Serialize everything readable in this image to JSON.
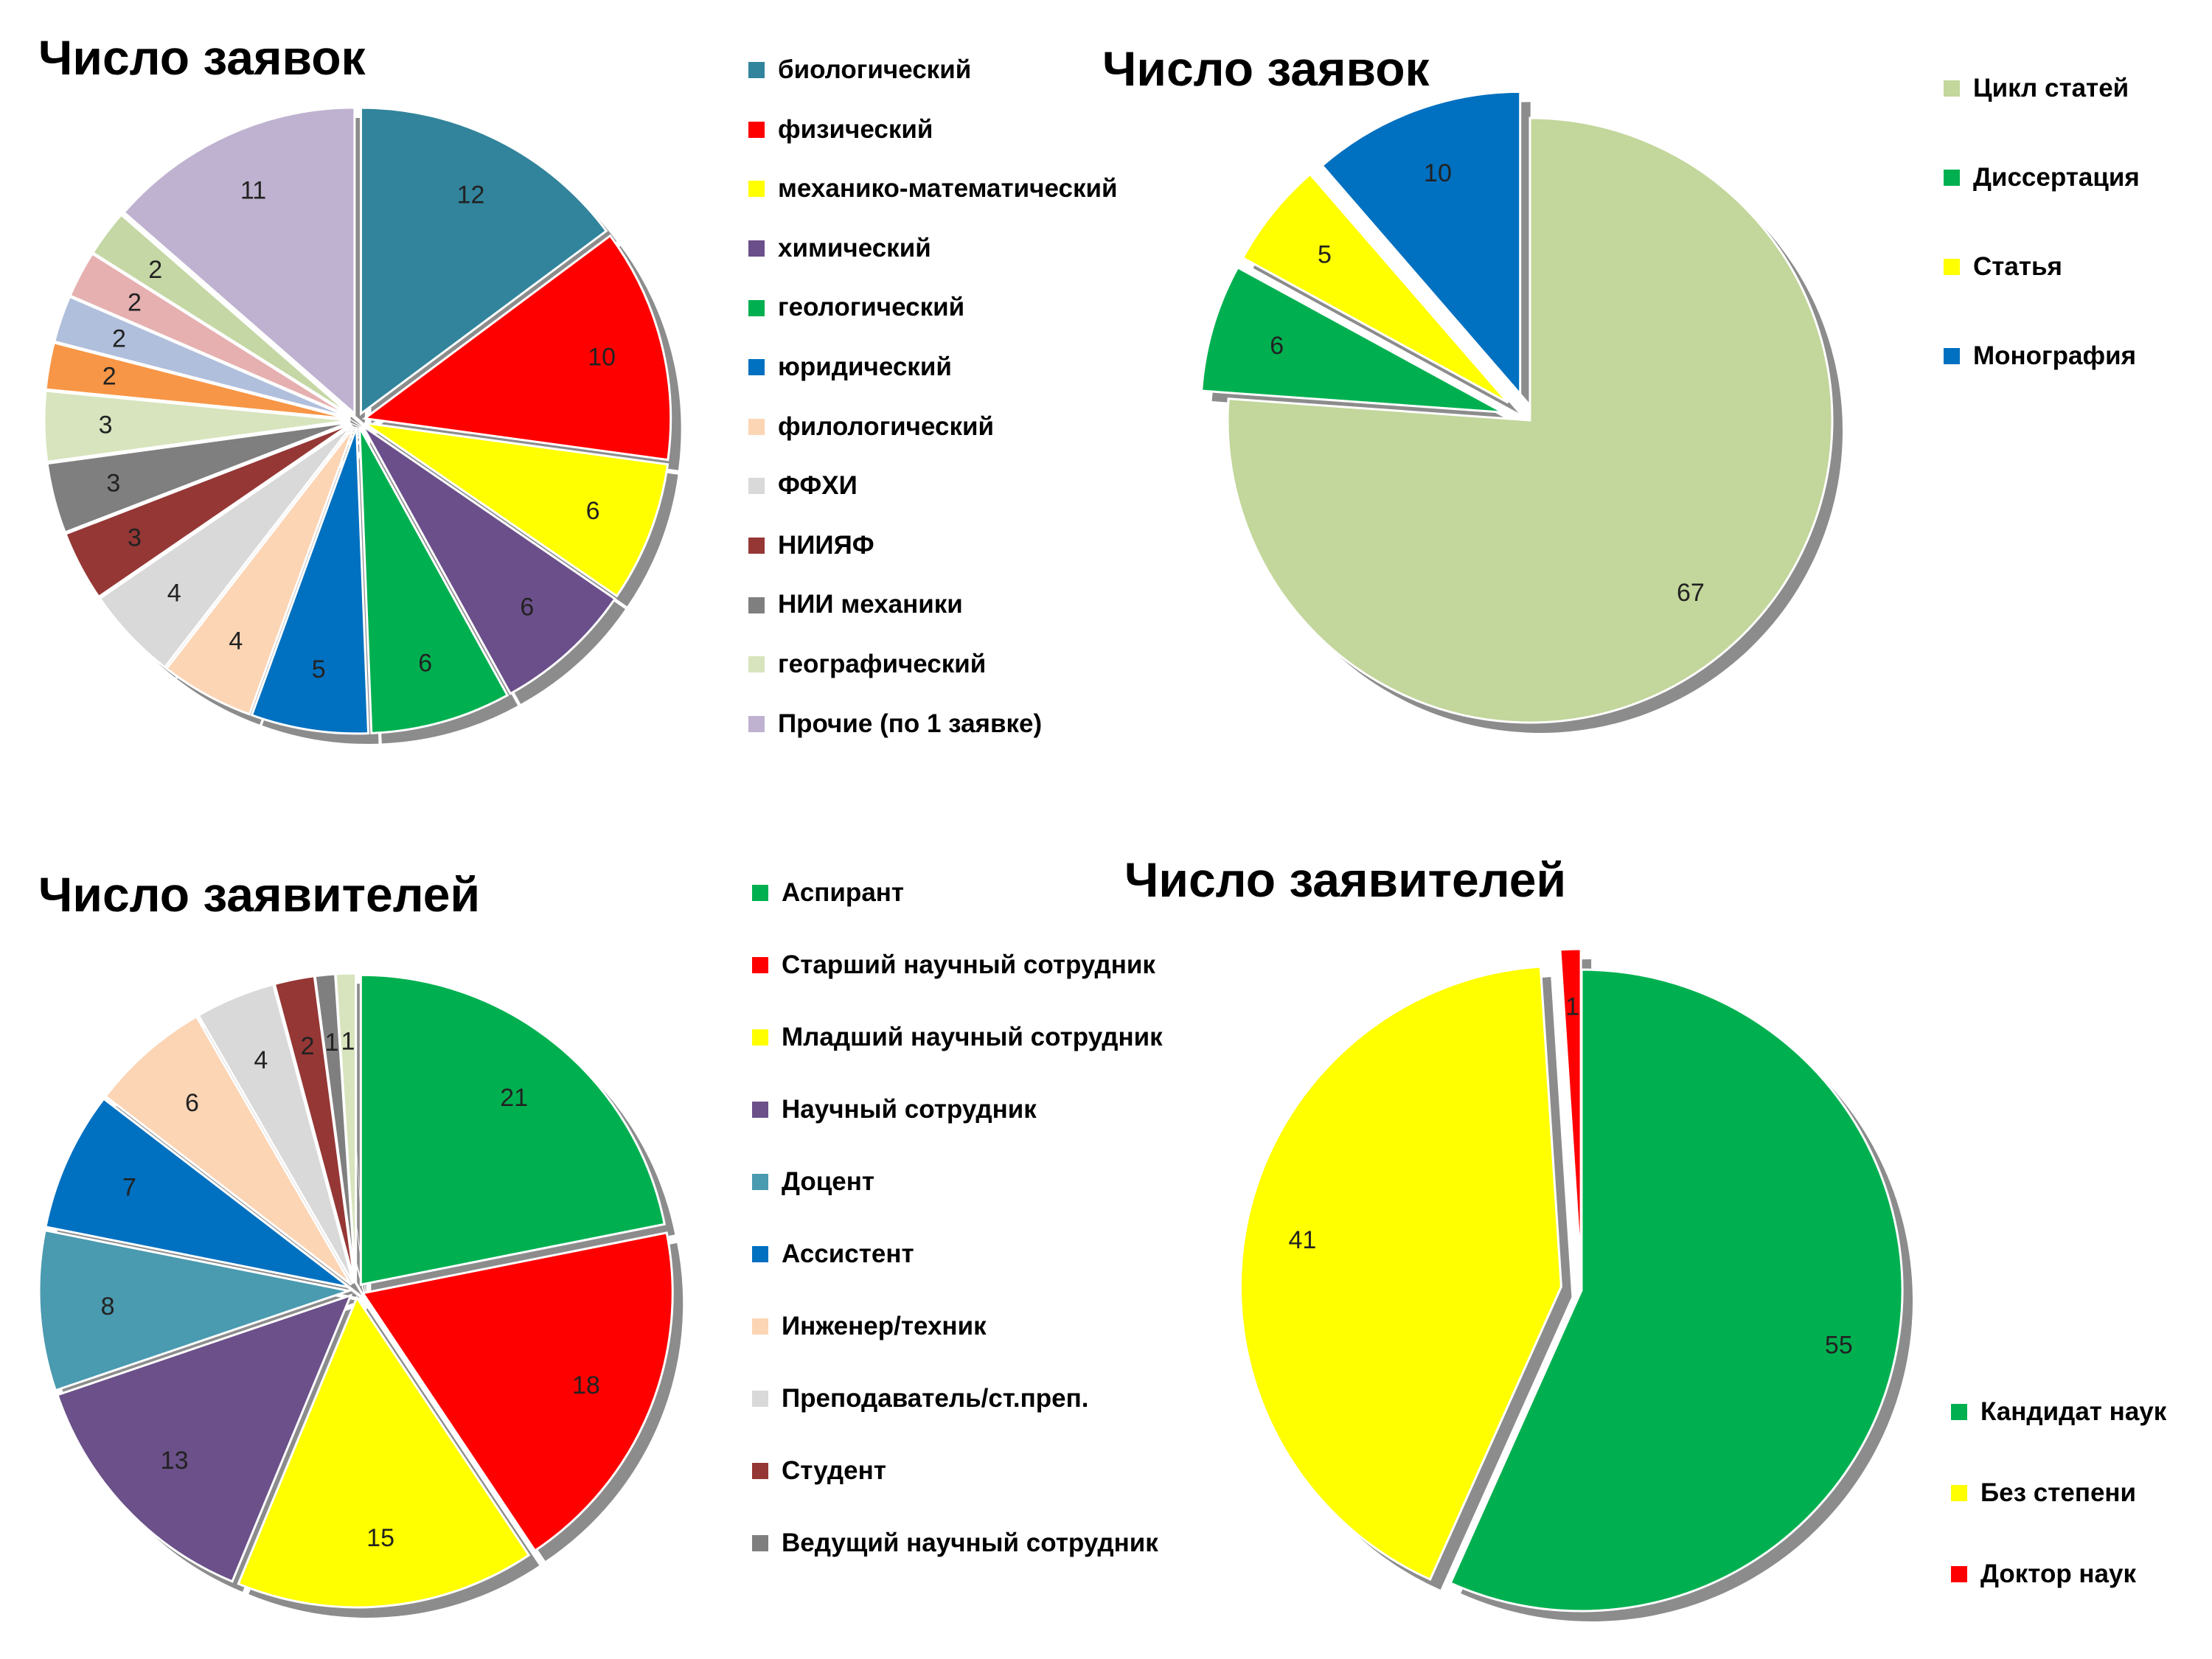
{
  "chart_data": [
    {
      "type": "pie",
      "title": "Число заявок",
      "categories": [
        "биологический",
        "физический",
        "механико-математический",
        "химический",
        "геологический",
        "юридический",
        "филологический",
        "ФФХИ",
        "НИИЯФ",
        "НИИ механики",
        "географический",
        "",
        "",
        "",
        "",
        "Прочие (по 1 заявке)"
      ],
      "values": [
        12,
        10,
        6,
        6,
        6,
        5,
        4,
        4,
        3,
        3,
        3,
        2,
        2,
        2,
        2,
        11
      ],
      "colors": [
        "#31849B",
        "#FF0000",
        "#FFFF00",
        "#6B4F8A",
        "#00B050",
        "#0070C0",
        "#FCD5B5",
        "#D9D9D9",
        "#953735",
        "#7F7F7F",
        "#D7E4BD",
        "#F79646",
        "#B0BFDC",
        "#E6B0B0",
        "#C4D7A4",
        "#BFB2D0",
        "#A9D0DE"
      ],
      "legend": {
        "position": "right",
        "entries": [
          "биологический",
          "физический",
          "механико-математический",
          "химический",
          "геологический",
          "юридический",
          "филологический",
          "ФФХИ",
          "НИИЯФ",
          "НИИ механики",
          "географический",
          "Прочие (по 1 заявке)"
        ]
      }
    },
    {
      "type": "pie",
      "title": "Число заявок",
      "categories": [
        "Цикл статей",
        "Диссертация",
        "Статья",
        "Монография"
      ],
      "values": [
        67,
        6,
        5,
        10
      ],
      "colors": [
        "#C3D69B",
        "#00B050",
        "#FFFF00",
        "#0070C0"
      ],
      "legend": {
        "position": "right",
        "entries": [
          "Цикл статей",
          "Диссертация",
          "Статья",
          "Монография"
        ]
      }
    },
    {
      "type": "pie",
      "title": "Число заявителей",
      "categories": [
        "Аспирант",
        "Старший научный сотрудник",
        "Младший научный сотрудник",
        "Научный сотрудник",
        "Доцент",
        "Ассистент",
        "Инженер/техник",
        "Преподаватель/ст.преп.",
        "Студент",
        "Ведущий научный сотрудник",
        ""
      ],
      "values": [
        21,
        18,
        15,
        13,
        8,
        7,
        6,
        4,
        2,
        1,
        1
      ],
      "colors": [
        "#00B050",
        "#FF0000",
        "#FFFF00",
        "#6B5089",
        "#4A9AB0",
        "#0070C0",
        "#FCD5B5",
        "#D9D9D9",
        "#953735",
        "#7F7F7F",
        "#D7E4BD"
      ],
      "legend": {
        "position": "right",
        "entries": [
          "Аспирант",
          "Старший научный сотрудник",
          "Младший научный сотрудник",
          "Научный сотрудник",
          "Доцент",
          "Ассистент",
          "Инженер/техник",
          "Преподаватель/ст.преп.",
          "Студент",
          "Ведущий научный сотрудник"
        ]
      }
    },
    {
      "type": "pie",
      "title": "Число заявителей",
      "categories": [
        "Кандидат наук",
        "Без степени",
        "Доктор наук"
      ],
      "values": [
        55,
        41,
        1
      ],
      "colors": [
        "#00B050",
        "#FFFF00",
        "#FF0000"
      ],
      "legend": {
        "position": "bottom-right",
        "entries": [
          "Кандидат наук",
          "Без степени",
          "Доктор наук"
        ]
      }
    }
  ]
}
